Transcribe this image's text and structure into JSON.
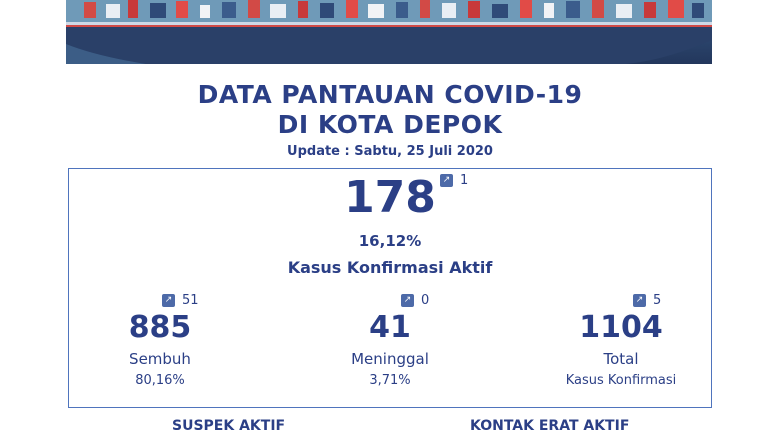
{
  "title_line1": "DATA PANTAUAN COVID-19",
  "title_line2": "DI KOTA DEPOK",
  "update": "Update : Sabtu, 25 Juli 2020",
  "active": {
    "value": "178",
    "change": "1",
    "percent": "16,12%",
    "label": "Kasus Konfirmasi Aktif"
  },
  "stats": [
    {
      "value": "885",
      "change": "51",
      "label": "Sembuh",
      "sub": "80,16%"
    },
    {
      "value": "41",
      "change": "0",
      "label": "Meninggal",
      "sub": "3,71%"
    },
    {
      "value": "1104",
      "change": "5",
      "label": "Total",
      "sub": "Kasus Konfirmasi"
    }
  ],
  "sections": {
    "suspek": "SUSPEK AKTIF",
    "kontak": "KONTAK ERAT AKTIF"
  },
  "colors": {
    "text": "#2b3f86",
    "border": "#4f74bd",
    "arrow": "#4d6aa8"
  },
  "icons": {
    "change": "arrow-up-right-icon"
  }
}
